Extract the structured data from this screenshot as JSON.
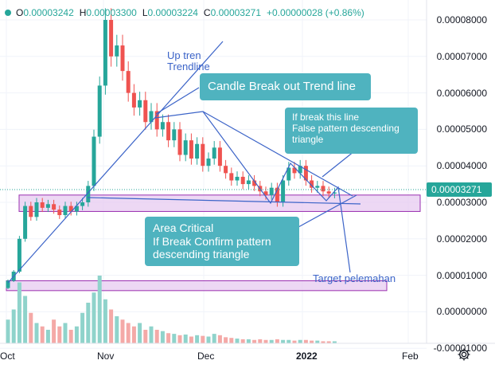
{
  "ohlc": {
    "open_label": "O",
    "open": "0.00003242",
    "high_label": "H",
    "high": "0.00003300",
    "low_label": "L",
    "low": "0.00003224",
    "close_label": "C",
    "close": "0.00003271",
    "change": "+0.00000028 (+0.86%)"
  },
  "price_badge": "0.00003271",
  "annotations": {
    "uptrend": "Up tren\nTrendline",
    "breakout_callout": "Candle Break out Trend line",
    "false_pattern_callout": "If break this line\nFalse pattern descending\ntriangle",
    "area_critical_callout": "Area Critical\nIf Break Confirm pattern\ndescending triangle",
    "target": "Target pelemahan"
  },
  "colors": {
    "up": "#26a69a",
    "down": "#ef5350",
    "drawing": "#3c64c8",
    "callout_bg": "#4fb3bf",
    "zone_fill": "#e6c8f0",
    "zone_border": "#9a2fb0"
  },
  "icons": {
    "settings": "gear-icon"
  },
  "chart_data": {
    "type": "candlestick",
    "title": "",
    "xlabel": "",
    "ylabel": "",
    "y_axis": {
      "ticks": [
        "0.00008000",
        "0.00007000",
        "0.00006000",
        "0.00005000",
        "0.00004000",
        "0.00003000",
        "0.00002000",
        "0.00001000",
        "0.00000000",
        "-0.00001000"
      ],
      "range": [
        -1.05e-05,
        8.92e-05
      ]
    },
    "x_axis": {
      "ticks": [
        {
          "label": "Oct",
          "major": false
        },
        {
          "label": "Nov",
          "major": false
        },
        {
          "label": "Dec",
          "major": false
        },
        {
          "label": "2022",
          "major": true
        },
        {
          "label": "Feb",
          "major": false
        }
      ]
    },
    "grid": true,
    "candles_approx": [
      [
        6.5e-06,
        8.5e-06
      ],
      [
        8.5e-06,
        1.1e-05
      ],
      [
        1.1e-05,
        2e-05
      ],
      [
        2e-05,
        2.9e-05
      ],
      [
        2.9e-05,
        2.6e-05
      ],
      [
        2.6e-05,
        3e-05
      ],
      [
        3e-05,
        2.85e-05
      ],
      [
        2.85e-05,
        2.95e-05
      ],
      [
        2.95e-05,
        2.8e-05
      ],
      [
        2.8e-05,
        2.65e-05
      ],
      [
        2.65e-05,
        2.9e-05
      ],
      [
        2.9e-05,
        2.75e-05
      ],
      [
        2.75e-05,
        2.9e-05
      ],
      [
        2.9e-05,
        3e-05
      ],
      [
        3e-05,
        3.45e-05
      ],
      [
        3.45e-05,
        4.8e-05
      ],
      [
        4.8e-05,
        6.2e-05
      ],
      [
        6.2e-05,
        8e-05
      ],
      [
        8e-05,
        7e-05
      ],
      [
        7e-05,
        7.3e-05
      ],
      [
        7.3e-05,
        6.6e-05
      ],
      [
        6.6e-05,
        6e-05
      ],
      [
        6e-05,
        5.6e-05
      ],
      [
        5.6e-05,
        5.8e-05
      ],
      [
        5.8e-05,
        5.2e-05
      ],
      [
        5.2e-05,
        5.5e-05
      ],
      [
        5.5e-05,
        5e-05
      ],
      [
        5e-05,
        5.2e-05
      ],
      [
        5.2e-05,
        4.7e-05
      ],
      [
        4.7e-05,
        5e-05
      ],
      [
        5e-05,
        4.3e-05
      ],
      [
        4.3e-05,
        4.7e-05
      ],
      [
        4.7e-05,
        4.2e-05
      ],
      [
        4.2e-05,
        4.6e-05
      ],
      [
        4.6e-05,
        4e-05
      ],
      [
        4e-05,
        4.2e-05
      ],
      [
        4.2e-05,
        4.5e-05
      ],
      [
        4.5e-05,
        4e-05
      ],
      [
        4e-05,
        3.8e-05
      ],
      [
        3.8e-05,
        3.6e-05
      ],
      [
        3.6e-05,
        3.7e-05
      ],
      [
        3.7e-05,
        3.5e-05
      ],
      [
        3.5e-05,
        3.6e-05
      ],
      [
        3.6e-05,
        3.45e-05
      ],
      [
        3.45e-05,
        3.3e-05
      ],
      [
        3.3e-05,
        3.2e-05
      ],
      [
        3.2e-05,
        3.4e-05
      ],
      [
        3.4e-05,
        3e-05
      ],
      [
        3e-05,
        3.6e-05
      ],
      [
        3.6e-05,
        3.95e-05
      ],
      [
        3.95e-05,
        3.8e-05
      ],
      [
        3.8e-05,
        4e-05
      ],
      [
        4e-05,
        3.6e-05
      ],
      [
        3.6e-05,
        3.4e-05
      ],
      [
        3.4e-05,
        3.45e-05
      ],
      [
        3.45e-05,
        3.3e-05
      ],
      [
        3.3e-05,
        3.24e-05
      ],
      [
        3.24e-05,
        3.27e-05
      ]
    ],
    "volume_relative": [
      0.35,
      0.5,
      0.9,
      0.7,
      0.45,
      0.3,
      0.25,
      0.2,
      0.35,
      0.25,
      0.3,
      0.2,
      0.25,
      0.45,
      0.6,
      0.75,
      1.0,
      0.65,
      0.5,
      0.4,
      0.35,
      0.3,
      0.25,
      0.3,
      0.2,
      0.25,
      0.2,
      0.18,
      0.15,
      0.14,
      0.12,
      0.13,
      0.1,
      0.12,
      0.11,
      0.1,
      0.14,
      0.12,
      0.09,
      0.08,
      0.07,
      0.06,
      0.06,
      0.05,
      0.06,
      0.05,
      0.05,
      0.06,
      0.05,
      0.05,
      0.04,
      0.05,
      0.05,
      0.04,
      0.04,
      0.03,
      0.03,
      0.03
    ],
    "zones": [
      {
        "name": "critical",
        "from": 2.75e-05,
        "to": 3.2e-05
      },
      {
        "name": "target",
        "from": 5.8e-06,
        "to": 8.5e-06
      }
    ],
    "drawn_lines": [
      {
        "name": "uptrend",
        "points": [
          [
            0,
            7e-06
          ],
          [
            18,
            6e-05
          ]
        ]
      },
      {
        "name": "support",
        "points": [
          [
            14,
            3.05e-05
          ],
          [
            56,
            2.85e-05
          ]
        ]
      },
      {
        "name": "descending-top",
        "points": [
          [
            27,
            5.45e-05
          ],
          [
            57,
            3.25e-05
          ]
        ]
      }
    ]
  }
}
